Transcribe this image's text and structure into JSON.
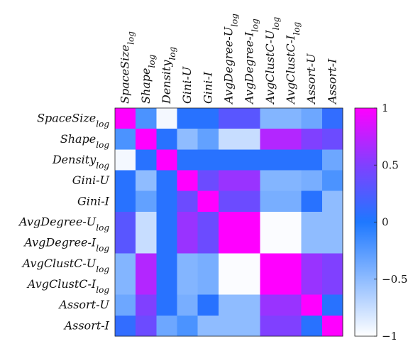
{
  "chart_data": {
    "type": "heatmap",
    "labels": [
      {
        "base": "SpaceSize",
        "sub": "log"
      },
      {
        "base": "Shape",
        "sub": "log"
      },
      {
        "base": "Density",
        "sub": "log"
      },
      {
        "base": "Gini-U",
        "sub": ""
      },
      {
        "base": "Gini-I",
        "sub": ""
      },
      {
        "base": "AvgDegree-U",
        "sub": "log"
      },
      {
        "base": "AvgDegree-I",
        "sub": "log"
      },
      {
        "base": "AvgClustC-U",
        "sub": "log"
      },
      {
        "base": "AvgClustC-I",
        "sub": "log"
      },
      {
        "base": "Assort-U",
        "sub": ""
      },
      {
        "base": "Assort-I",
        "sub": ""
      }
    ],
    "matrix": [
      [
        1.0,
        -0.2,
        -0.95,
        0.05,
        0.05,
        0.3,
        0.3,
        -0.45,
        -0.45,
        -0.35,
        0.1
      ],
      [
        -0.2,
        1.0,
        0.05,
        -0.5,
        -0.3,
        -0.75,
        -0.75,
        0.7,
        0.7,
        0.5,
        0.4
      ],
      [
        -0.95,
        0.05,
        1.0,
        0.05,
        0.05,
        0.05,
        0.05,
        0.05,
        0.05,
        0.05,
        -0.35
      ],
      [
        0.05,
        -0.5,
        0.05,
        1.0,
        0.4,
        0.6,
        0.6,
        -0.45,
        -0.45,
        -0.4,
        -0.2
      ],
      [
        0.05,
        -0.3,
        0.05,
        0.4,
        1.0,
        0.4,
        0.4,
        -0.4,
        -0.4,
        0.05,
        -0.5
      ],
      [
        0.3,
        -0.75,
        0.05,
        0.6,
        0.4,
        1.0,
        1.0,
        -0.98,
        -0.98,
        -0.5,
        -0.5
      ],
      [
        0.3,
        -0.75,
        0.05,
        0.6,
        0.4,
        1.0,
        1.0,
        -0.98,
        -0.98,
        -0.5,
        -0.5
      ],
      [
        -0.45,
        0.7,
        0.05,
        -0.45,
        -0.4,
        -0.98,
        -0.98,
        1.0,
        1.0,
        0.6,
        0.5
      ],
      [
        -0.45,
        0.7,
        0.05,
        -0.45,
        -0.4,
        -0.98,
        -0.98,
        1.0,
        1.0,
        0.6,
        0.5
      ],
      [
        -0.35,
        0.5,
        0.05,
        -0.4,
        0.05,
        -0.5,
        -0.5,
        0.6,
        0.6,
        1.0,
        0.05
      ],
      [
        0.1,
        0.4,
        -0.35,
        -0.2,
        -0.5,
        -0.5,
        -0.5,
        0.5,
        0.5,
        0.05,
        1.0
      ]
    ],
    "colorbar": {
      "range": [
        -1,
        1
      ],
      "ticks": [
        {
          "value": 1,
          "label": "1"
        },
        {
          "value": 0.5,
          "label": "0.5"
        },
        {
          "value": 0,
          "label": "0"
        },
        {
          "value": -0.5,
          "label": "−0.5"
        },
        {
          "value": -1,
          "label": "−1"
        }
      ],
      "stops": [
        {
          "value": -1,
          "color": "#ffffff"
        },
        {
          "value": 0,
          "color": "#1e78ff"
        },
        {
          "value": 0.5,
          "color": "#8040ff"
        },
        {
          "value": 1,
          "color": "#ff00ff"
        }
      ]
    }
  }
}
